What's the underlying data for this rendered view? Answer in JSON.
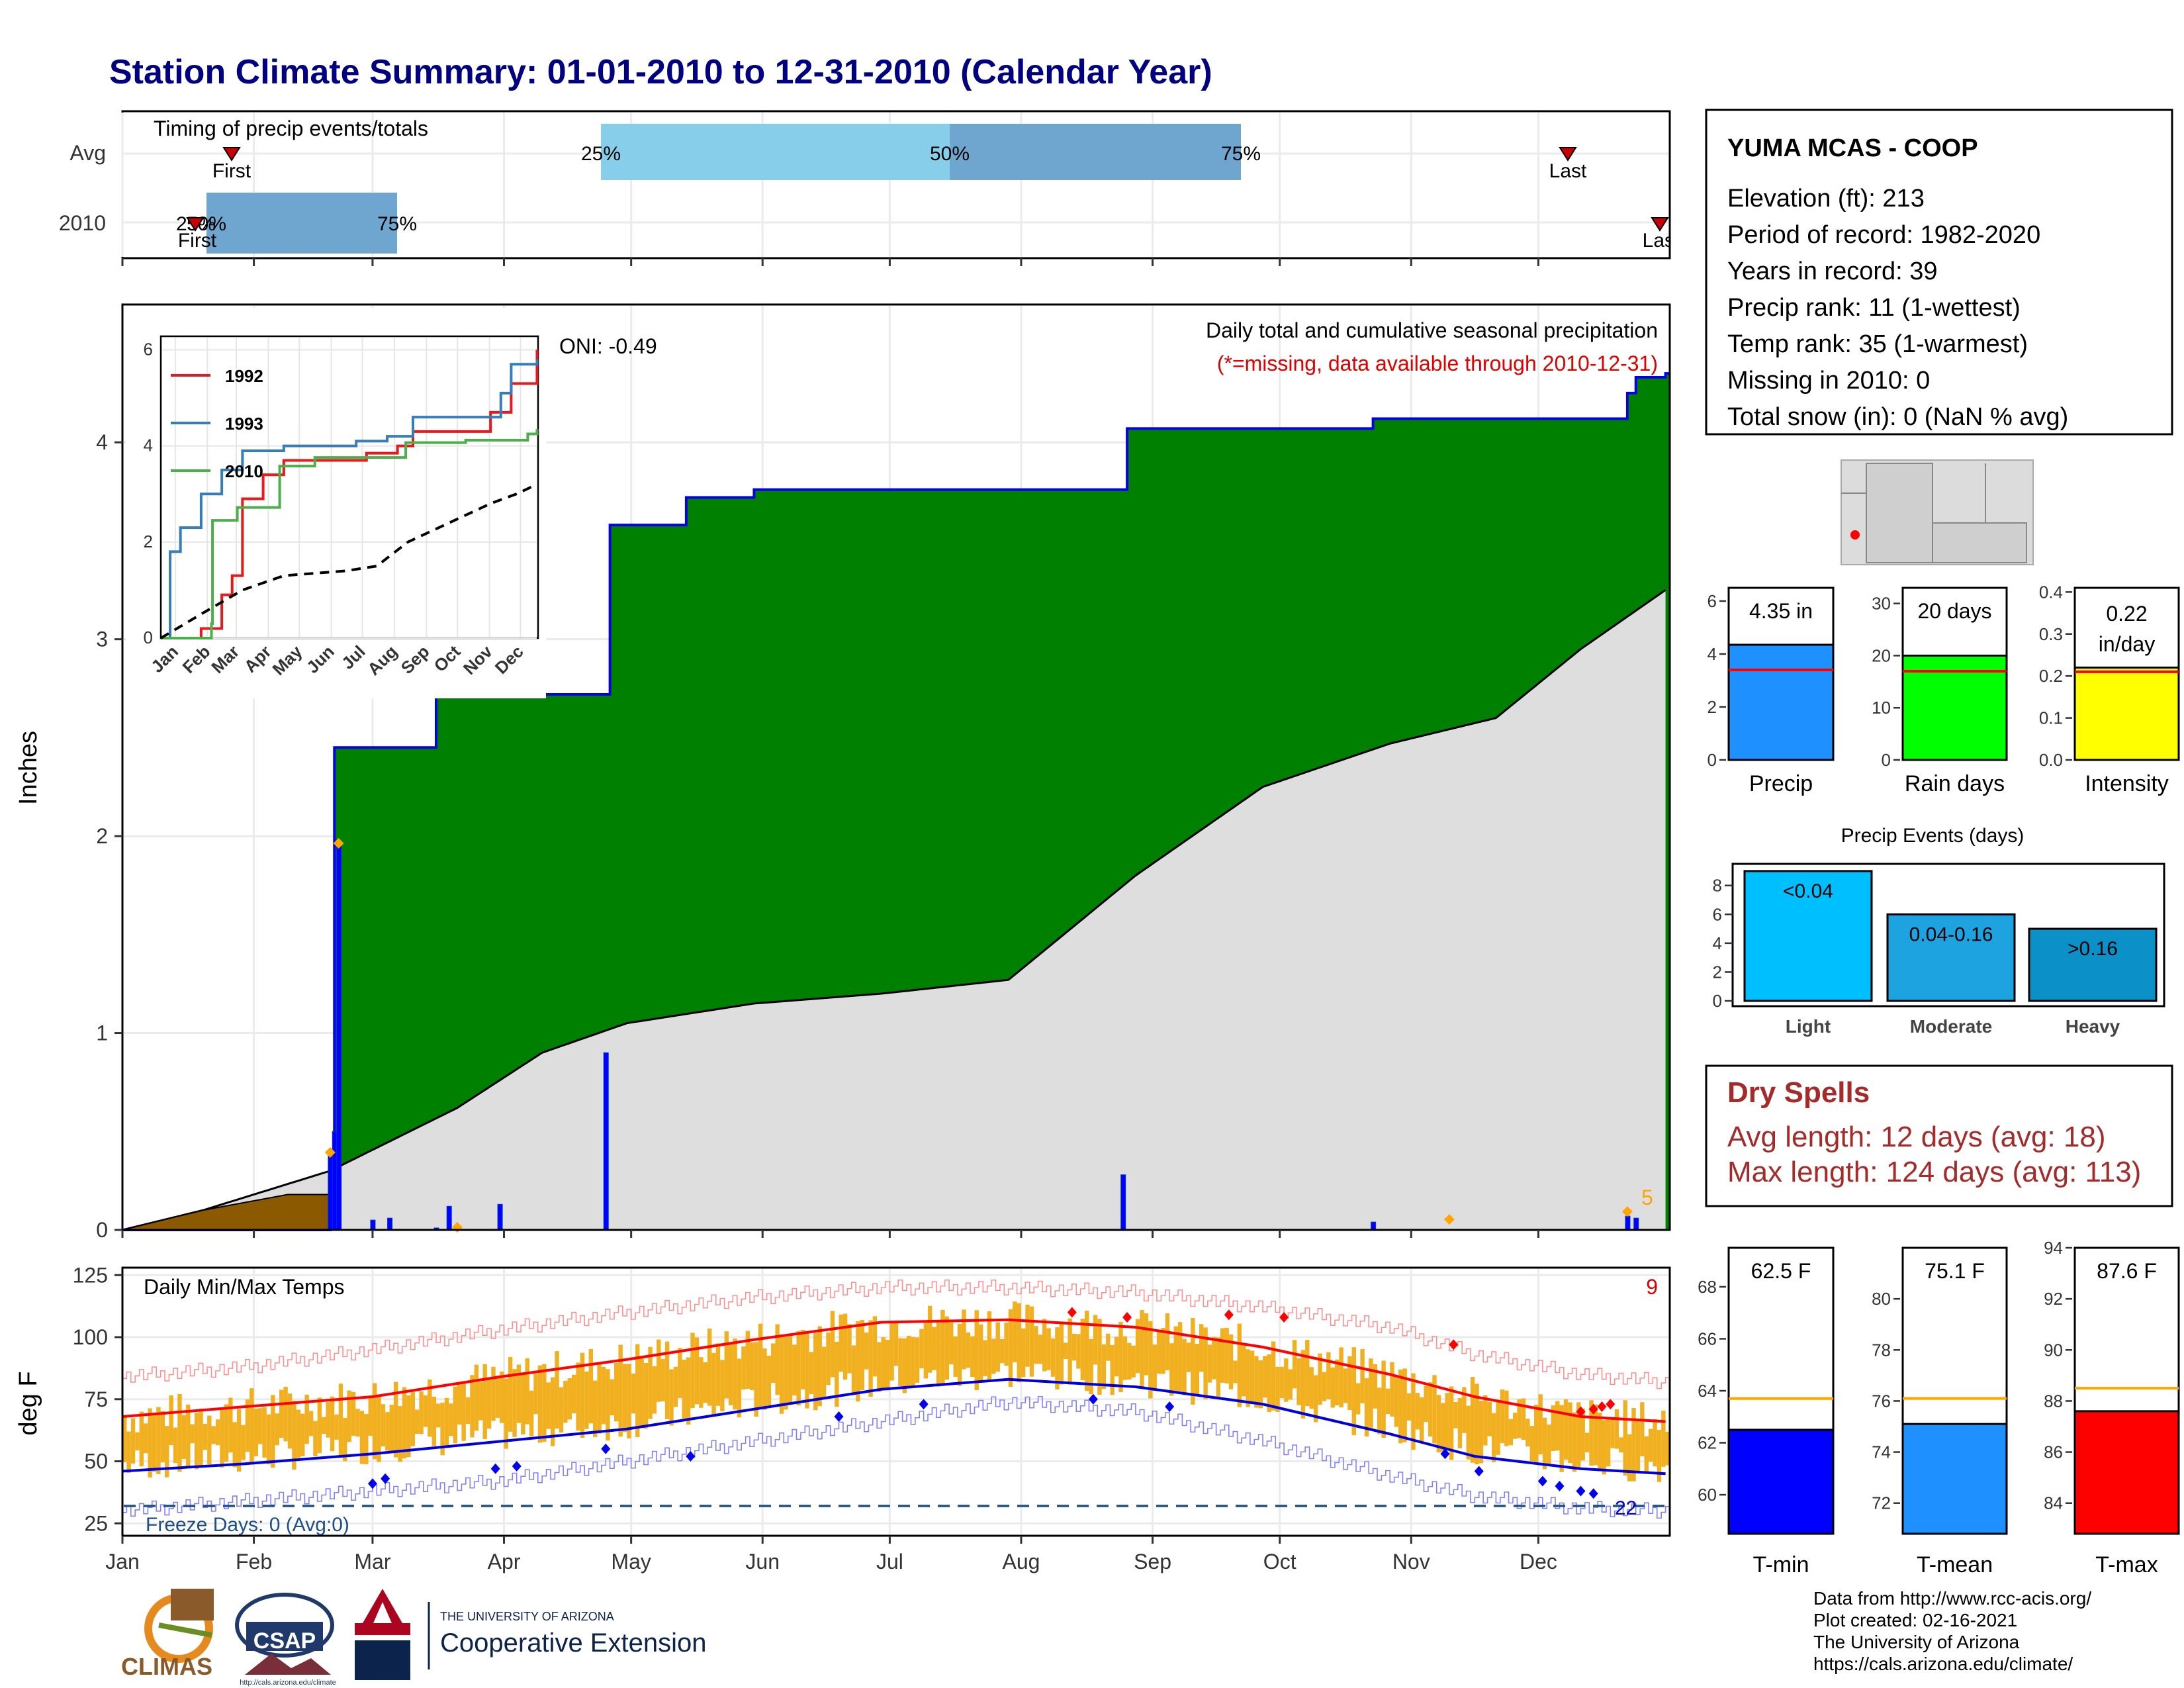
{
  "title": "Station Climate Summary: 01-01-2010 to 12-31-2010 (Calendar Year)",
  "timing": {
    "label": "Timing of precip events/totals",
    "rows": [
      "Avg",
      "2010"
    ],
    "avg": {
      "first": "First",
      "last": "Last",
      "p25": "25%",
      "p50": "50%",
      "p75": "75%"
    },
    "y2010": {
      "first": "First",
      "last": "Last",
      "p25": "25%",
      "p50": "50%",
      "p75": "75%"
    }
  },
  "station": {
    "name": "YUMA MCAS - COOP",
    "lines": [
      "Elevation (ft): 213",
      "Period of record: 1982-2020",
      "Years in record: 39",
      "Precip rank: 11 (1-wettest)",
      "Temp rank: 35 (1-warmest)",
      "Missing in 2010: 0",
      "Total snow (in): 0 (NaN % avg)"
    ]
  },
  "precip_panel": {
    "ylabel": "Inches",
    "yticks": [
      "0",
      "1",
      "2",
      "3",
      "4"
    ],
    "oni": "ONI: -0.49",
    "header": "Daily total and cumulative seasonal precipitation",
    "missing_note": "(*=missing, data available through 2010-12-31)",
    "count_label": "5",
    "inset": {
      "legend": [
        "1992",
        "1993",
        "2010"
      ],
      "yticks": [
        "0",
        "2",
        "4",
        "6"
      ],
      "xticks": [
        "Jan",
        "Feb",
        "Mar",
        "Apr",
        "May",
        "Jun",
        "Jul",
        "Aug",
        "Sep",
        "Oct",
        "Nov",
        "Dec"
      ],
      "colors": {
        "1992": "#e41a1c",
        "1993": "#377eb8",
        "2010": "#4daf4a"
      }
    }
  },
  "temp_panel": {
    "ylabel": "deg F",
    "label": "Daily Min/Max Temps",
    "yticks": [
      "25",
      "50",
      "75",
      "100",
      "125"
    ],
    "freeze": "Freeze Days: 0 (Avg:0)",
    "count_hot": "9",
    "count_cold": "22",
    "months": [
      "Jan",
      "Feb",
      "Mar",
      "Apr",
      "May",
      "Jun",
      "Jul",
      "Aug",
      "Sep",
      "Oct",
      "Nov",
      "Dec"
    ]
  },
  "precip_bars": {
    "items": [
      {
        "label": "Precip",
        "value_text": "4.35 in",
        "yticks": [
          "0",
          "2",
          "4",
          "6"
        ],
        "color": "#1e90ff"
      },
      {
        "label": "Rain days",
        "value_text": "20 days",
        "yticks": [
          "0",
          "10",
          "20",
          "30"
        ],
        "color": "#00ff00"
      },
      {
        "label": "Intensity",
        "value_text": "0.22 in/day",
        "value_line1": "0.22",
        "value_line2": "in/day",
        "yticks": [
          "0.0",
          "0.1",
          "0.2",
          "0.3",
          "0.4"
        ],
        "color": "#ffff00"
      }
    ]
  },
  "events": {
    "title": "Precip Events (days)",
    "yticks": [
      "0",
      "2",
      "4",
      "6",
      "8"
    ],
    "bars": [
      {
        "label": "Light",
        "text": "<0.04"
      },
      {
        "label": "Moderate",
        "text": "0.04-0.16"
      },
      {
        "label": "Heavy",
        "text": ">0.16"
      }
    ]
  },
  "dry_spells": {
    "title": "Dry Spells",
    "avg": "Avg length: 12 days (avg: 18)",
    "max": "Max length: 124 days (avg: 113)"
  },
  "temp_bars": {
    "items": [
      {
        "label": "T-min",
        "value_text": "62.5 F",
        "yticks": [
          "60",
          "62",
          "64",
          "66",
          "68"
        ],
        "color": "#0000ff"
      },
      {
        "label": "T-mean",
        "value_text": "75.1 F",
        "yticks": [
          "72",
          "74",
          "76",
          "78",
          "80"
        ],
        "color": "#1e90ff"
      },
      {
        "label": "T-max",
        "value_text": "87.6 F",
        "yticks": [
          "84",
          "86",
          "88",
          "90",
          "92",
          "94"
        ],
        "color": "#ff0000"
      }
    ]
  },
  "logos": {
    "climas": "CLIMAS",
    "csap": "CSAP",
    "csap_url": "http://cals.arizona.edu/climate",
    "ua_small": "THE UNIVERSITY OF ARIZONA",
    "ua_big": "Cooperative Extension"
  },
  "footer": [
    "Data from http://www.rcc-acis.org/",
    "Plot created: 02-16-2021",
    "The University of Arizona",
    "https://cals.arizona.edu/climate/"
  ],
  "chart_data": [
    {
      "type": "area",
      "name": "cumulative precipitation 2010",
      "x_unit": "day of year",
      "ylim": [
        0,
        4.7
      ],
      "observed_cumulative": [
        [
          1,
          0
        ],
        [
          50,
          0.3
        ],
        [
          51,
          2.45
        ],
        [
          74,
          2.45
        ],
        [
          75,
          2.72
        ],
        [
          115,
          2.72
        ],
        [
          116,
          3.58
        ],
        [
          134,
          3.72
        ],
        [
          150,
          3.76
        ],
        [
          237,
          3.76
        ],
        [
          238,
          4.07
        ],
        [
          295,
          4.07
        ],
        [
          296,
          4.12
        ],
        [
          355,
          4.12
        ],
        [
          356,
          4.25
        ],
        [
          358,
          4.33
        ],
        [
          365,
          4.35
        ]
      ],
      "normal_cumulative": [
        [
          1,
          0
        ],
        [
          20,
          0.1
        ],
        [
          50,
          0.3
        ],
        [
          80,
          0.62
        ],
        [
          100,
          0.9
        ],
        [
          120,
          1.05
        ],
        [
          150,
          1.15
        ],
        [
          180,
          1.2
        ],
        [
          210,
          1.27
        ],
        [
          240,
          1.8
        ],
        [
          270,
          2.25
        ],
        [
          300,
          2.47
        ],
        [
          325,
          2.6
        ],
        [
          345,
          2.95
        ],
        [
          365,
          3.25
        ]
      ],
      "daily_precip": [
        [
          50,
          0.38
        ],
        [
          51,
          0.5
        ],
        [
          52,
          1.95
        ],
        [
          60,
          0.05
        ],
        [
          64,
          0.06
        ],
        [
          75,
          0.01
        ],
        [
          78,
          0.12
        ],
        [
          90,
          0.13
        ],
        [
          115,
          0.9
        ],
        [
          237,
          0.28
        ],
        [
          296,
          0.04
        ],
        [
          356,
          0.07
        ],
        [
          358,
          0.06
        ]
      ],
      "avg_drought_early": [
        [
          1,
          0
        ],
        [
          20,
          0.1
        ],
        [
          40,
          0.18
        ],
        [
          50,
          0.18
        ]
      ],
      "count_label": "5"
    },
    {
      "type": "line",
      "name": "inset cumulative comparison",
      "ylim": [
        0,
        6
      ],
      "series": [
        {
          "name": "1992",
          "values": [
            [
              1,
              0
            ],
            [
              40,
              0.2
            ],
            [
              55,
              0.2
            ],
            [
              60,
              0.9
            ],
            [
              70,
              1.3
            ],
            [
              80,
              2.9
            ],
            [
              100,
              3.4
            ],
            [
              120,
              3.7
            ],
            [
              200,
              3.85
            ],
            [
              230,
              4.0
            ],
            [
              245,
              4.3
            ],
            [
              320,
              4.7
            ],
            [
              340,
              5.3
            ],
            [
              350,
              5.3
            ],
            [
              365,
              6.0
            ]
          ]
        },
        {
          "name": "1993",
          "values": [
            [
              1,
              0
            ],
            [
              10,
              1.8
            ],
            [
              20,
              2.3
            ],
            [
              40,
              3.0
            ],
            [
              60,
              3.5
            ],
            [
              80,
              3.9
            ],
            [
              120,
              4.0
            ],
            [
              190,
              4.1
            ],
            [
              220,
              4.2
            ],
            [
              245,
              4.6
            ],
            [
              330,
              5.1
            ],
            [
              340,
              5.7
            ],
            [
              365,
              5.8
            ]
          ]
        },
        {
          "name": "2010",
          "values": [
            [
              1,
              0
            ],
            [
              50,
              0.3
            ],
            [
              51,
              2.45
            ],
            [
              75,
              2.72
            ],
            [
              116,
              3.58
            ],
            [
              150,
              3.76
            ],
            [
              238,
              4.07
            ],
            [
              296,
              4.12
            ],
            [
              356,
              4.25
            ],
            [
              365,
              4.35
            ]
          ]
        },
        {
          "name": "normal",
          "values": [
            [
              1,
              0
            ],
            [
              40,
              0.5
            ],
            [
              80,
              1.0
            ],
            [
              120,
              1.3
            ],
            [
              180,
              1.4
            ],
            [
              210,
              1.5
            ],
            [
              240,
              2.0
            ],
            [
              280,
              2.4
            ],
            [
              320,
              2.8
            ],
            [
              345,
              3.0
            ],
            [
              365,
              3.2
            ]
          ]
        }
      ]
    },
    {
      "type": "line",
      "name": "daily min/max temperatures",
      "ylim": [
        20,
        128
      ],
      "normal_max": [
        [
          1,
          68
        ],
        [
          30,
          72
        ],
        [
          60,
          76
        ],
        [
          90,
          84
        ],
        [
          120,
          91
        ],
        [
          150,
          99
        ],
        [
          180,
          106
        ],
        [
          210,
          107
        ],
        [
          240,
          104
        ],
        [
          270,
          96
        ],
        [
          300,
          85
        ],
        [
          320,
          76
        ],
        [
          345,
          68
        ],
        [
          365,
          66
        ]
      ],
      "normal_min": [
        [
          1,
          46
        ],
        [
          30,
          49
        ],
        [
          60,
          53
        ],
        [
          90,
          58
        ],
        [
          120,
          63
        ],
        [
          150,
          71
        ],
        [
          180,
          79
        ],
        [
          210,
          83
        ],
        [
          240,
          80
        ],
        [
          270,
          73
        ],
        [
          300,
          61
        ],
        [
          320,
          52
        ],
        [
          345,
          47
        ],
        [
          365,
          45
        ]
      ],
      "record_max": [
        [
          1,
          84
        ],
        [
          30,
          88
        ],
        [
          60,
          95
        ],
        [
          90,
          103
        ],
        [
          120,
          110
        ],
        [
          150,
          116
        ],
        [
          180,
          120
        ],
        [
          210,
          120
        ],
        [
          240,
          118
        ],
        [
          270,
          112
        ],
        [
          300,
          104
        ],
        [
          320,
          93
        ],
        [
          345,
          85
        ],
        [
          365,
          82
        ]
      ],
      "record_min": [
        [
          1,
          30
        ],
        [
          30,
          34
        ],
        [
          60,
          38
        ],
        [
          90,
          42
        ],
        [
          120,
          50
        ],
        [
          150,
          58
        ],
        [
          180,
          66
        ],
        [
          210,
          74
        ],
        [
          240,
          70
        ],
        [
          270,
          58
        ],
        [
          300,
          44
        ],
        [
          320,
          36
        ],
        [
          345,
          31
        ],
        [
          365,
          30
        ]
      ],
      "freeze_line": 32,
      "count_hot": "9",
      "count_cold": "22"
    },
    {
      "type": "bar",
      "name": "season totals",
      "categories": [
        "Precip",
        "Rain days",
        "Intensity"
      ],
      "values": [
        4.35,
        20,
        0.22
      ],
      "averages": [
        3.4,
        17,
        0.21
      ],
      "ylims": [
        [
          0,
          6.5
        ],
        [
          0,
          33
        ],
        [
          0,
          0.41
        ]
      ]
    },
    {
      "type": "bar",
      "name": "Precip Events (days)",
      "categories": [
        "Light",
        "Moderate",
        "Heavy"
      ],
      "values": [
        9,
        6,
        5
      ],
      "ylim": [
        0,
        9.5
      ]
    },
    {
      "type": "bar",
      "name": "season temperatures",
      "categories": [
        "T-min",
        "T-mean",
        "T-max"
      ],
      "values": [
        62.5,
        75.1,
        87.6
      ],
      "averages": [
        63.7,
        76.1,
        88.5
      ],
      "ylims": [
        [
          58.5,
          69.5
        ],
        [
          70.8,
          82.0
        ],
        [
          82.8,
          94.0
        ]
      ]
    }
  ]
}
